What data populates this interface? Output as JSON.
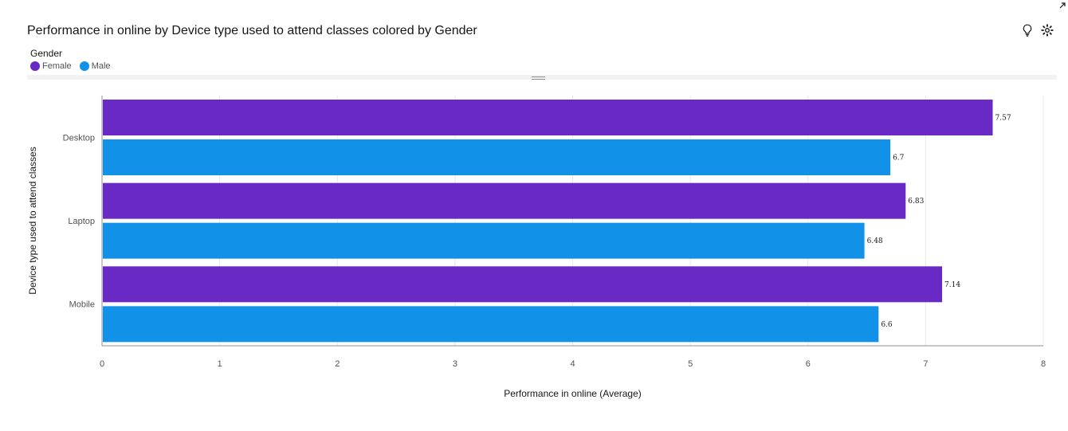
{
  "chart_data": {
    "type": "bar",
    "orientation": "horizontal",
    "title": "Performance in online by Device type used to attend classes colored by Gender",
    "xlabel": "Performance in online (Average)",
    "ylabel": "Device type used to attend classes",
    "categories": [
      "Desktop",
      "Laptop",
      "Mobile"
    ],
    "legend_title": "Gender",
    "series": [
      {
        "name": "Female",
        "color": "#6929c4",
        "values": [
          7.57,
          6.83,
          7.14
        ],
        "labels": [
          "7.57",
          "6.83",
          "7.14"
        ]
      },
      {
        "name": "Male",
        "color": "#1192e8",
        "values": [
          6.7,
          6.48,
          6.6
        ],
        "labels": [
          "6.7",
          "6.48",
          "6.6"
        ]
      }
    ],
    "xlim": [
      0,
      8
    ],
    "xticks": [
      "0",
      "1",
      "2",
      "3",
      "4",
      "5",
      "6",
      "7",
      "8"
    ],
    "grid": "vertical",
    "legend_position": "top-left"
  },
  "icons": {
    "lightbulb": "lightbulb-icon",
    "settings": "settings-icon",
    "corner": "expand-arrow-icon"
  }
}
